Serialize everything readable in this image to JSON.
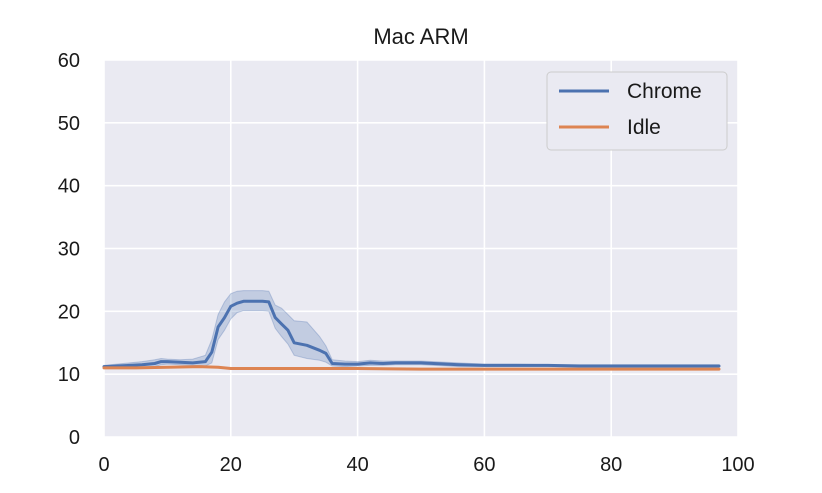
{
  "chart_data": {
    "type": "line",
    "title": "Mac ARM",
    "xlabel": "",
    "ylabel": "",
    "xlim": [
      0,
      100
    ],
    "ylim": [
      0,
      60
    ],
    "xticks": [
      "0",
      "20",
      "40",
      "60",
      "80",
      "100"
    ],
    "yticks": [
      "0",
      "10",
      "20",
      "30",
      "40",
      "50",
      "60"
    ],
    "grid": true,
    "legend_position": "top-right",
    "series": [
      {
        "name": "Chrome",
        "color": "#4c72b0",
        "x": [
          0,
          2,
          4,
          6,
          8,
          9,
          10,
          12,
          14,
          16,
          17,
          18,
          19,
          20,
          21,
          22,
          23,
          24,
          25,
          26,
          27,
          28,
          29,
          30,
          32,
          34,
          35,
          36,
          38,
          40,
          42,
          44,
          46,
          48,
          50,
          52,
          54,
          56,
          60,
          65,
          70,
          75,
          80,
          85,
          90,
          95,
          97
        ],
        "y": [
          11.2,
          11.3,
          11.4,
          11.5,
          11.7,
          12.0,
          12.0,
          11.9,
          11.8,
          12.0,
          13.5,
          17.5,
          19.0,
          20.8,
          21.3,
          21.6,
          21.6,
          21.6,
          21.6,
          21.5,
          19.0,
          18.0,
          17.0,
          15.0,
          14.6,
          13.8,
          13.3,
          11.7,
          11.6,
          11.6,
          11.8,
          11.7,
          11.8,
          11.8,
          11.8,
          11.7,
          11.6,
          11.5,
          11.4,
          11.4,
          11.4,
          11.3,
          11.3,
          11.3,
          11.3,
          11.3,
          11.3
        ],
        "band_upper": [
          11.4,
          11.6,
          11.8,
          12.0,
          12.3,
          12.5,
          12.4,
          12.3,
          12.4,
          13.0,
          15.5,
          19.5,
          21.5,
          22.8,
          23.2,
          23.3,
          23.3,
          23.3,
          23.3,
          23.2,
          21.0,
          20.5,
          19.5,
          18.5,
          18.3,
          16.0,
          14.5,
          12.3,
          12.1,
          12.0,
          12.2,
          12.1,
          12.1,
          12.1,
          12.1,
          12.0,
          11.9,
          11.8,
          11.6,
          11.6,
          11.5,
          11.5,
          11.5,
          11.5,
          11.5,
          11.5,
          11.5
        ],
        "band_lower": [
          11.0,
          11.0,
          11.0,
          11.1,
          11.2,
          11.5,
          11.6,
          11.5,
          11.4,
          11.3,
          11.8,
          15.5,
          17.0,
          18.8,
          19.8,
          20.1,
          20.1,
          20.1,
          20.1,
          20.0,
          17.3,
          16.0,
          14.8,
          13.0,
          12.5,
          12.2,
          11.9,
          11.3,
          11.2,
          11.3,
          11.4,
          11.4,
          11.5,
          11.5,
          11.5,
          11.4,
          11.3,
          11.2,
          11.2,
          11.2,
          11.2,
          11.1,
          11.1,
          11.1,
          11.1,
          11.1,
          11.1
        ]
      },
      {
        "name": "Idle",
        "color": "#dd8452",
        "x": [
          0,
          5,
          10,
          15,
          18,
          20,
          25,
          30,
          40,
          50,
          60,
          70,
          80,
          90,
          97
        ],
        "y": [
          11.0,
          11.0,
          11.1,
          11.2,
          11.1,
          10.9,
          10.9,
          10.9,
          10.9,
          10.8,
          10.8,
          10.8,
          10.8,
          10.8,
          10.8
        ]
      }
    ]
  }
}
